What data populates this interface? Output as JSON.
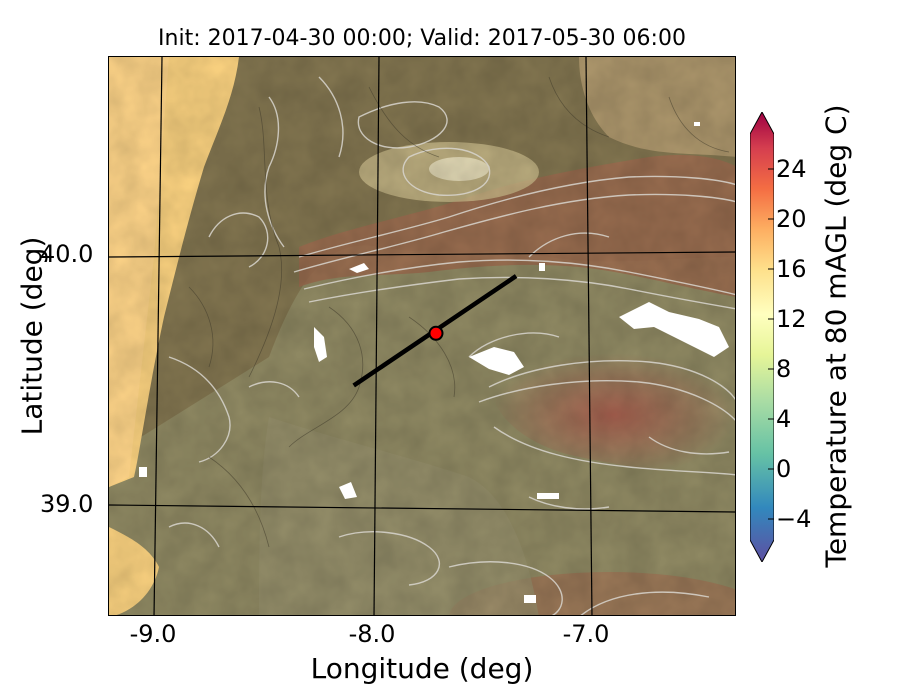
{
  "title": "Init: 2017-04-30 00:00; Valid: 2017-05-30 06:00",
  "xlabel": "Longitude (deg)",
  "ylabel": "Latitude (deg)",
  "xticks": [
    "-9.0",
    "-8.0",
    "-7.0"
  ],
  "yticks": [
    "40.0",
    "39.0"
  ],
  "colorbar": {
    "label": "Temperature at 80 mAGL (deg C)",
    "ticks": [
      "24",
      "20",
      "16",
      "12",
      "8",
      "4",
      "0",
      "−4"
    ],
    "colors": [
      "#5e4fa2",
      "#3288bd",
      "#66c2a5",
      "#abdda4",
      "#e6f598",
      "#ffffbf",
      "#fee08b",
      "#fdae61",
      "#f46d43",
      "#d53e4f",
      "#9e0142"
    ]
  },
  "map": {
    "lon_range": [
      -9.25,
      -6.35
    ],
    "lat_range": [
      38.55,
      40.8
    ],
    "transect": {
      "start_lon": -8.12,
      "start_lat": 39.48,
      "end_lon": -7.37,
      "end_lat": 39.92
    },
    "marker": {
      "lon": -7.74,
      "lat": 39.69,
      "color": "#ff0000"
    }
  }
}
